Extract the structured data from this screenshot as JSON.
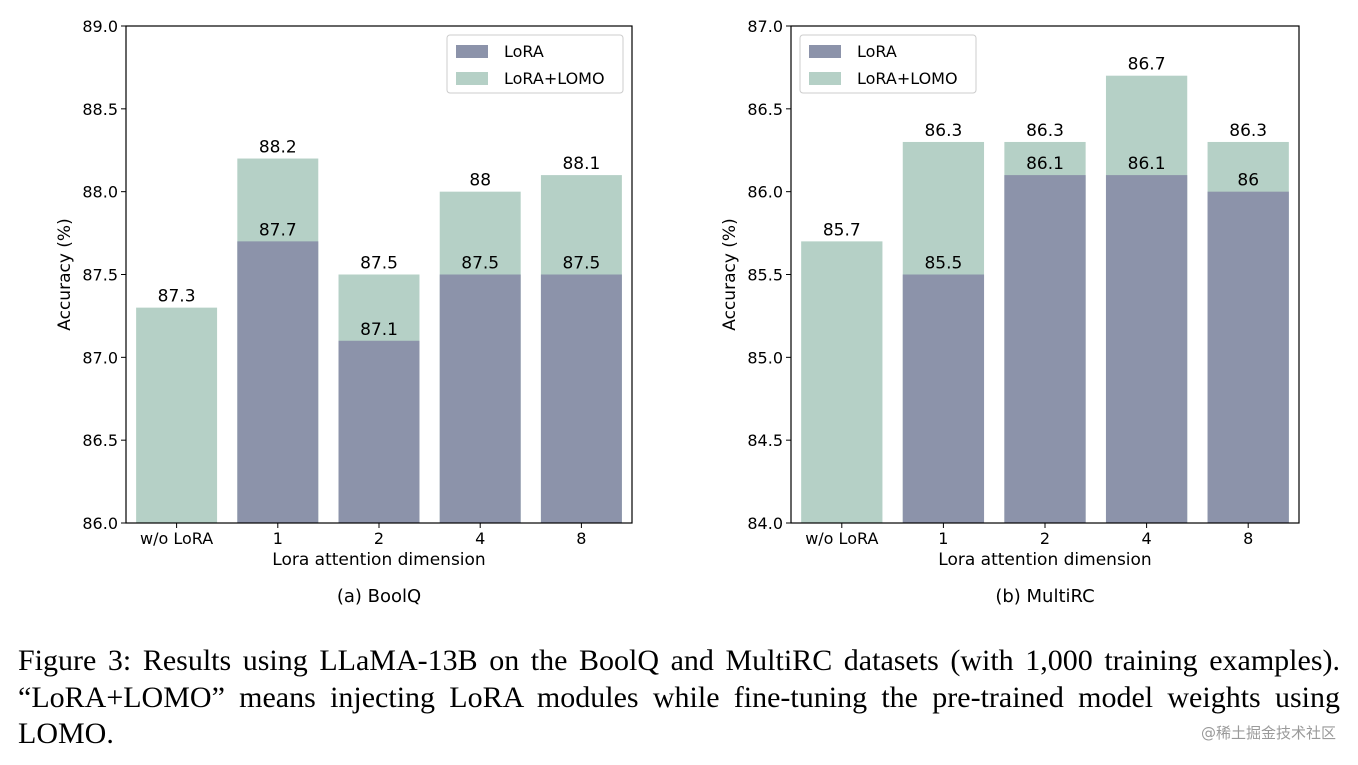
{
  "colors": {
    "lora": "#8c93aa",
    "lora_lomo": "#b5d0c6",
    "axis": "#000000"
  },
  "chart_data": [
    {
      "type": "bar",
      "subtitle": "(a) BoolQ",
      "xlabel": "Lora attention dimension",
      "ylabel": "Accuracy (%)",
      "categories": [
        "w/o LoRA",
        "1",
        "2",
        "4",
        "8"
      ],
      "ylim": [
        86.0,
        89.0
      ],
      "yticks": [
        "86.0",
        "86.5",
        "87.0",
        "87.5",
        "88.0",
        "88.5",
        "89.0"
      ],
      "legend_position": "top-right",
      "series": [
        {
          "name": "LoRA",
          "values": [
            null,
            87.7,
            87.1,
            87.5,
            87.5
          ],
          "labels": [
            "",
            "87.7",
            "87.1",
            "87.5",
            "87.5"
          ]
        },
        {
          "name": "LoRA+LOMO",
          "values": [
            87.3,
            88.2,
            87.5,
            88.0,
            88.1
          ],
          "labels": [
            "87.3",
            "88.2",
            "87.5",
            "88",
            "88.1"
          ]
        }
      ]
    },
    {
      "type": "bar",
      "subtitle": "(b) MultiRC",
      "xlabel": "Lora attention dimension",
      "ylabel": "Accuracy (%)",
      "categories": [
        "w/o LoRA",
        "1",
        "2",
        "4",
        "8"
      ],
      "ylim": [
        84.0,
        87.0
      ],
      "yticks": [
        "84.0",
        "84.5",
        "85.0",
        "85.5",
        "86.0",
        "86.5",
        "87.0"
      ],
      "legend_position": "top-left",
      "series": [
        {
          "name": "LoRA",
          "values": [
            null,
            85.5,
            86.1,
            86.1,
            86.0
          ],
          "labels": [
            "",
            "85.5",
            "86.1",
            "86.1",
            "86"
          ]
        },
        {
          "name": "LoRA+LOMO",
          "values": [
            85.7,
            86.3,
            86.3,
            86.7,
            86.3
          ],
          "labels": [
            "85.7",
            "86.3",
            "86.3",
            "86.7",
            "86.3"
          ]
        }
      ]
    }
  ],
  "caption": "Figure 3: Results using LLaMA-13B on the BoolQ and MultiRC datasets (with 1,000 training examples). “LoRA+LOMO” means injecting LoRA modules while fine-tuning the pre-trained model weights using LOMO.",
  "watermark": "@稀土掘金技术社区"
}
